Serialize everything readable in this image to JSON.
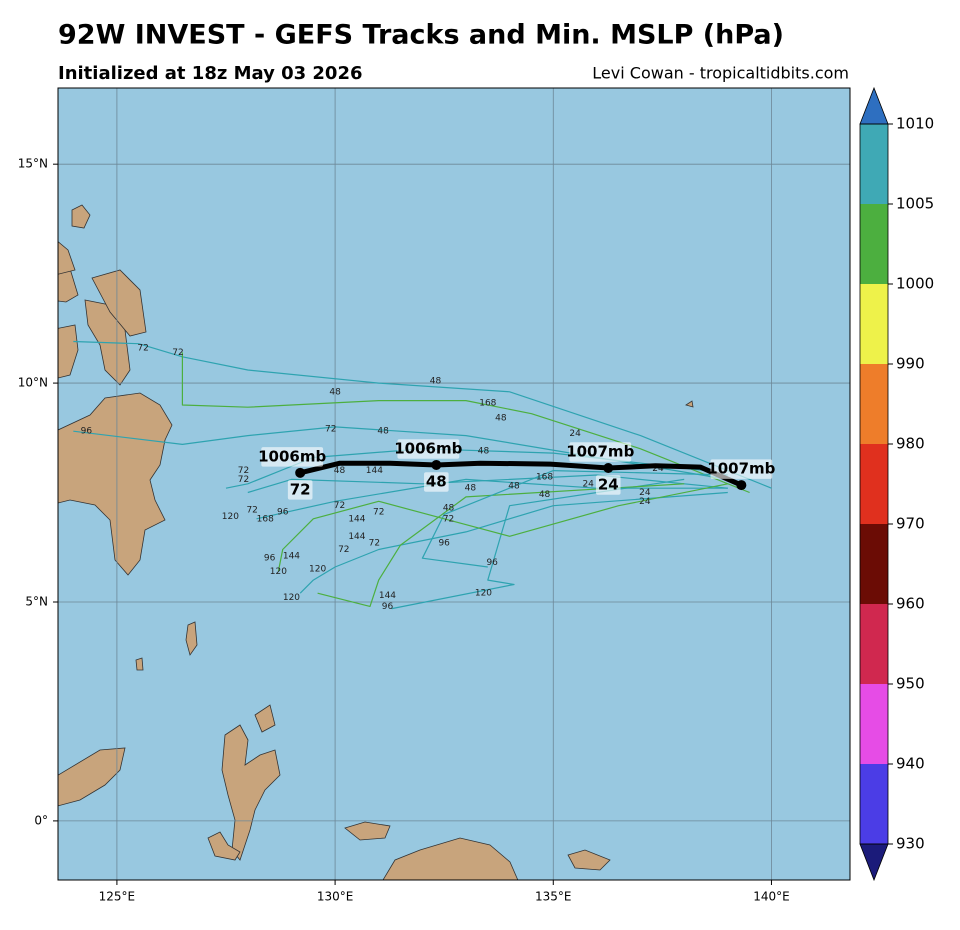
{
  "header": {
    "title": "92W INVEST - GEFS Tracks and Min. MSLP (hPa)",
    "subtitle": "Initialized at 18z May 03 2026",
    "credit": "Levi Cowan - tropicaltidbits.com"
  },
  "map": {
    "lon_range": [
      123.65,
      141.8
    ],
    "lat_range": [
      -1.35,
      16.74
    ],
    "grid": true,
    "lon_ticks": [
      {
        "value": 125,
        "label": "125°E"
      },
      {
        "value": 130,
        "label": "130°E"
      },
      {
        "value": 135,
        "label": "135°E"
      },
      {
        "value": 140,
        "label": "140°E"
      }
    ],
    "lat_ticks": [
      {
        "value": 0,
        "label": "0°"
      },
      {
        "value": 5,
        "label": "5°N"
      },
      {
        "value": 10,
        "label": "10°N"
      },
      {
        "value": 15,
        "label": "15°N"
      }
    ],
    "ensemble_tracks": [
      {
        "color": "#2ea3b0",
        "lon": [
          140,
          137,
          134,
          131,
          128,
          126.5,
          125.5,
          124
        ],
        "lat": [
          7.6,
          8.8,
          9.8,
          10.0,
          10.3,
          10.6,
          10.9,
          10.95
        ]
      },
      {
        "color": "#4caf3f",
        "lon": [
          139.5,
          137,
          134.5,
          133,
          131,
          128,
          126.5,
          126.5
        ],
        "lat": [
          7.5,
          8.5,
          9.3,
          9.6,
          9.6,
          9.45,
          9.5,
          10.7
        ]
      },
      {
        "color": "#2ea3b0",
        "lon": [
          139,
          136,
          133,
          130,
          128,
          126.5,
          124
        ],
        "lat": [
          7.8,
          8.3,
          8.8,
          9.0,
          8.8,
          8.6,
          8.9
        ]
      },
      {
        "color": "#2ea3b0",
        "lon": [
          139,
          136,
          132,
          129,
          128
        ],
        "lat": [
          7.6,
          7.9,
          7.7,
          7.8,
          7.5
        ]
      },
      {
        "color": "#2ea3b0",
        "lon": [
          139,
          135,
          133,
          131,
          130,
          129.5,
          129.2
        ],
        "lat": [
          7.5,
          7.2,
          6.6,
          6.2,
          5.8,
          5.5,
          5.2
        ]
      },
      {
        "color": "#2ea3b0",
        "lon": [
          138,
          134,
          133.5,
          134.1,
          131.3
        ],
        "lat": [
          7.8,
          7.2,
          5.5,
          5.4,
          4.85
        ]
      },
      {
        "color": "#4caf3f",
        "lon": [
          138,
          133,
          131.5,
          131,
          130.8,
          129.6
        ],
        "lat": [
          7.7,
          7.4,
          6.3,
          5.5,
          4.9,
          5.2
        ]
      },
      {
        "color": "#2ea3b0",
        "lon": [
          139,
          135,
          132.5,
          132,
          133.5
        ],
        "lat": [
          7.9,
          8.0,
          7.0,
          6.0,
          5.8
        ]
      },
      {
        "color": "#2ea3b0",
        "lon": [
          138.5,
          135,
          132,
          129.5,
          128,
          127.5
        ],
        "lat": [
          8.0,
          8.4,
          8.5,
          8.3,
          7.7,
          7.6
        ]
      },
      {
        "color": "#2ea3b0",
        "lon": [
          139,
          136,
          133,
          130,
          128.2
        ],
        "lat": [
          7.6,
          7.6,
          7.8,
          7.3,
          6.9
        ]
      },
      {
        "color": "#4caf3f",
        "lon": [
          139,
          136.5,
          134,
          132.5,
          131,
          129.5,
          128.8,
          128.7
        ],
        "lat": [
          7.7,
          7.2,
          6.5,
          6.9,
          7.3,
          6.9,
          6.2,
          5.7
        ]
      }
    ],
    "hour_labels": [
      {
        "text": "72",
        "lon": 125.6,
        "lat": 10.8
      },
      {
        "text": "72",
        "lon": 126.4,
        "lat": 10.7
      },
      {
        "text": "48",
        "lon": 130.0,
        "lat": 9.8
      },
      {
        "text": "48",
        "lon": 132.3,
        "lat": 10.05
      },
      {
        "text": "168",
        "lon": 133.5,
        "lat": 9.55
      },
      {
        "text": "48",
        "lon": 133.8,
        "lat": 9.2
      },
      {
        "text": "96",
        "lon": 124.3,
        "lat": 8.9
      },
      {
        "text": "72",
        "lon": 129.9,
        "lat": 8.95
      },
      {
        "text": "48",
        "lon": 131.1,
        "lat": 8.9
      },
      {
        "text": "48",
        "lon": 133.4,
        "lat": 8.45
      },
      {
        "text": "24",
        "lon": 135.5,
        "lat": 8.85
      },
      {
        "text": "24",
        "lon": 137.4,
        "lat": 8.05
      },
      {
        "text": "24",
        "lon": 135.8,
        "lat": 7.7
      },
      {
        "text": "24",
        "lon": 137.1,
        "lat": 7.5
      },
      {
        "text": "24",
        "lon": 137.1,
        "lat": 7.3
      },
      {
        "text": "168",
        "lon": 134.8,
        "lat": 7.85
      },
      {
        "text": "48",
        "lon": 134.1,
        "lat": 7.65
      },
      {
        "text": "48",
        "lon": 134.8,
        "lat": 7.45
      },
      {
        "text": "48",
        "lon": 133.1,
        "lat": 7.6
      },
      {
        "text": "144",
        "lon": 130.9,
        "lat": 8.0
      },
      {
        "text": "48",
        "lon": 130.1,
        "lat": 8.0
      },
      {
        "text": "72",
        "lon": 130.1,
        "lat": 7.2
      },
      {
        "text": "144",
        "lon": 130.5,
        "lat": 6.9
      },
      {
        "text": "144",
        "lon": 130.5,
        "lat": 6.5
      },
      {
        "text": "72",
        "lon": 131.0,
        "lat": 7.05
      },
      {
        "text": "72",
        "lon": 130.2,
        "lat": 6.2
      },
      {
        "text": "72",
        "lon": 130.9,
        "lat": 6.35
      },
      {
        "text": "48",
        "lon": 132.6,
        "lat": 7.15
      },
      {
        "text": "72",
        "lon": 132.6,
        "lat": 6.9
      },
      {
        "text": "96",
        "lon": 132.5,
        "lat": 6.35
      },
      {
        "text": "96",
        "lon": 133.6,
        "lat": 5.9
      },
      {
        "text": "120",
        "lon": 133.4,
        "lat": 5.2
      },
      {
        "text": "96",
        "lon": 128.8,
        "lat": 7.05
      },
      {
        "text": "96",
        "lon": 128.5,
        "lat": 6.0
      },
      {
        "text": "144",
        "lon": 129.0,
        "lat": 6.05
      },
      {
        "text": "120",
        "lon": 129.6,
        "lat": 5.75
      },
      {
        "text": "120",
        "lon": 128.7,
        "lat": 5.7
      },
      {
        "text": "120",
        "lon": 129.0,
        "lat": 5.1
      },
      {
        "text": "144",
        "lon": 131.2,
        "lat": 5.15
      },
      {
        "text": "96",
        "lon": 131.2,
        "lat": 4.9
      },
      {
        "text": "72",
        "lon": 127.9,
        "lat": 8.0
      },
      {
        "text": "72",
        "lon": 127.9,
        "lat": 7.8
      },
      {
        "text": "120",
        "lon": 127.6,
        "lat": 6.95
      },
      {
        "text": "168",
        "lon": 128.4,
        "lat": 6.9
      },
      {
        "text": "72",
        "lon": 128.1,
        "lat": 7.1
      }
    ],
    "mean_track": {
      "color": "#000000",
      "lon": [
        139.31,
        138.37,
        137.34,
        136.26,
        134.93,
        133.33,
        132.32,
        131.26,
        130.11,
        129.2
      ],
      "lat": [
        7.67,
        8.08,
        8.11,
        8.06,
        8.15,
        8.17,
        8.13,
        8.17,
        8.17,
        7.95
      ]
    },
    "mean_points": [
      {
        "pressure_label": "1007mb",
        "lon": 139.31,
        "lat": 7.67
      },
      {
        "pressure_label": "1007mb",
        "hour_label": "24",
        "lon": 136.26,
        "lat": 8.06
      },
      {
        "pressure_label": "1006mb",
        "hour_label": "48",
        "lon": 132.32,
        "lat": 8.13
      },
      {
        "pressure_label": "1006mb",
        "hour_label": "72",
        "lon": 129.2,
        "lat": 7.95
      }
    ]
  },
  "colorbar": {
    "ticks": [
      930,
      940,
      950,
      960,
      970,
      980,
      990,
      1000,
      1005,
      1010
    ],
    "colors": [
      "#4b3de6",
      "#e64ce6",
      "#d0284f",
      "#6b0c05",
      "#e0301e",
      "#ee7d2a",
      "#eef24a",
      "#4caf3f",
      "#3fa9b5"
    ],
    "extend_colors": [
      "#1b1b7a",
      "#2e6fc0"
    ]
  }
}
